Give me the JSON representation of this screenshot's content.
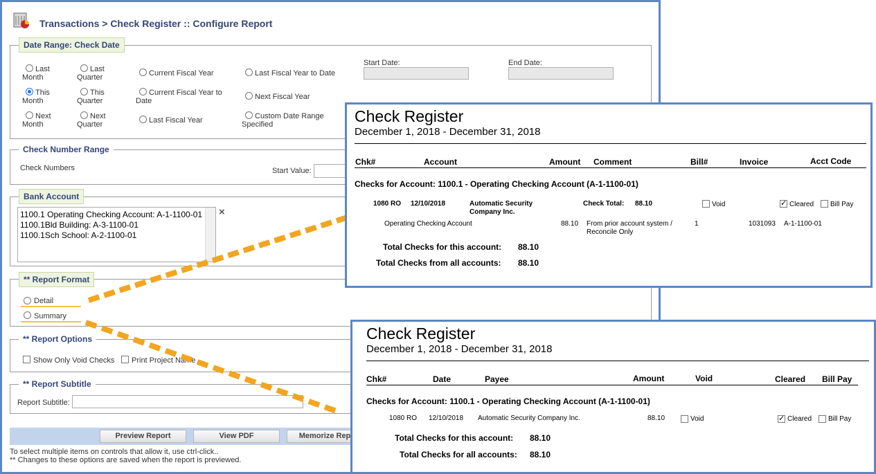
{
  "header": {
    "title": "Transactions > Check Register :: Configure Report"
  },
  "date_range": {
    "legend": "Date Range: Check Date",
    "options": [
      {
        "line1": "Last",
        "line2": "Month",
        "selected": false
      },
      {
        "line1": "Last",
        "line2": "Quarter",
        "selected": false
      },
      {
        "line1": "Current Fiscal Year",
        "line2": "",
        "selected": false
      },
      {
        "line1": "Last Fiscal Year to Date",
        "line2": "",
        "selected": false
      },
      {
        "line1": "This",
        "line2": "Month",
        "selected": true
      },
      {
        "line1": "This",
        "line2": "Quarter",
        "selected": false
      },
      {
        "line1": "Current Fiscal Year to",
        "line2": "Date",
        "selected": false
      },
      {
        "line1": "Next Fiscal Year",
        "line2": "",
        "selected": false
      },
      {
        "line1": "Next",
        "line2": "Month",
        "selected": false
      },
      {
        "line1": "Next",
        "line2": "Quarter",
        "selected": false
      },
      {
        "line1": "Last Fiscal Year",
        "line2": "",
        "selected": false
      },
      {
        "line1": "Custom Date Range",
        "line2": "Specified",
        "selected": false
      }
    ],
    "start_label": "Start Date:",
    "end_label": "End Date:",
    "start_value": "",
    "end_value": ""
  },
  "check_number": {
    "legend": "Check Number Range",
    "label": "Check Numbers",
    "start_label": "Start Value:",
    "start_value": ""
  },
  "bank_account": {
    "legend": "Bank Account",
    "items": [
      "1100.1 Operating Checking Account: A-1-1100-01",
      "1100.1Bld Building: A-3-1100-01",
      "1100.1Sch School: A-2-1100-01"
    ],
    "clear_glyph": "×"
  },
  "report_format": {
    "legend": "** Report Format",
    "options": [
      "Detail",
      "Summary"
    ]
  },
  "report_options": {
    "legend": "** Report Options",
    "options": [
      {
        "label": "Show Only Void Checks",
        "checked": false
      },
      {
        "label": "Print Project Name",
        "checked": false
      }
    ]
  },
  "report_subtitle": {
    "legend": "** Report Subtitle",
    "label": "Report Subtitle:",
    "value": ""
  },
  "buttons": {
    "preview": "Preview Report",
    "pdf": "View PDF",
    "memorize": "Memorize Rep"
  },
  "footnotes": {
    "line1": "To select multiple items on controls that allow it, use ctrl-click..",
    "line2": "** Changes to these options are saved when the report is previewed."
  },
  "detail_report": {
    "title": "Check Register",
    "period": "December 1, 2018 - December 31, 2018",
    "columns": [
      "Chk#",
      "Account",
      "Amount",
      "Comment",
      "Bill#",
      "Invoice",
      "Acct Code"
    ],
    "group_header": "Checks for Account:  1100.1 - Operating Checking Account (A-1-1100-01)",
    "check": {
      "number": "1080 RO",
      "date": "12/10/2018",
      "payee_line1": "Automatic Security",
      "payee_line2": "Company Inc.",
      "total_label": "Check Total:",
      "total_value": "88.10",
      "void_label": "Void",
      "void_checked": false,
      "cleared_label": "Cleared",
      "cleared_checked": true,
      "billpay_label": "Bill Pay",
      "billpay_checked": false
    },
    "line": {
      "account": "Operating Checking Account",
      "amount": "88.10",
      "comment_line1": "From prior account system /",
      "comment_line2": "Reconcile Only",
      "bill": "1",
      "invoice": "1031093",
      "acct_code": "A-1-1100-01"
    },
    "total_account_label": "Total Checks for this account:",
    "total_account_value": "88.10",
    "total_all_label": "Total Checks from all accounts:",
    "total_all_value": "88.10"
  },
  "summary_report": {
    "title": "Check Register",
    "period": "December 1, 2018 - December 31, 2018",
    "columns": [
      "Chk#",
      "Date",
      "Payee",
      "Amount",
      "Void",
      "Cleared",
      "Bill Pay"
    ],
    "group_header": "Checks for Account:  1100.1 - Operating Checking Account (A-1-1100-01)",
    "row": {
      "number": "1080 RO",
      "date": "12/10/2018",
      "payee": "Automatic Security Company Inc.",
      "amount": "88.10",
      "void_label": "Void",
      "void_checked": false,
      "cleared_label": "Cleared",
      "cleared_checked": true,
      "billpay_label": "Bill Pay",
      "billpay_checked": false
    },
    "total_account_label": "Total Checks for this account:",
    "total_account_value": "88.10",
    "total_all_label": "Total Checks for all accounts:",
    "total_all_value": "88.10"
  },
  "colors": {
    "frame": "#5b87c5",
    "accent_dash": "#f2a51f",
    "legend_bg": "#eef5df",
    "title": "#34457a"
  },
  "icons": {
    "app": "report-chart-icon"
  }
}
